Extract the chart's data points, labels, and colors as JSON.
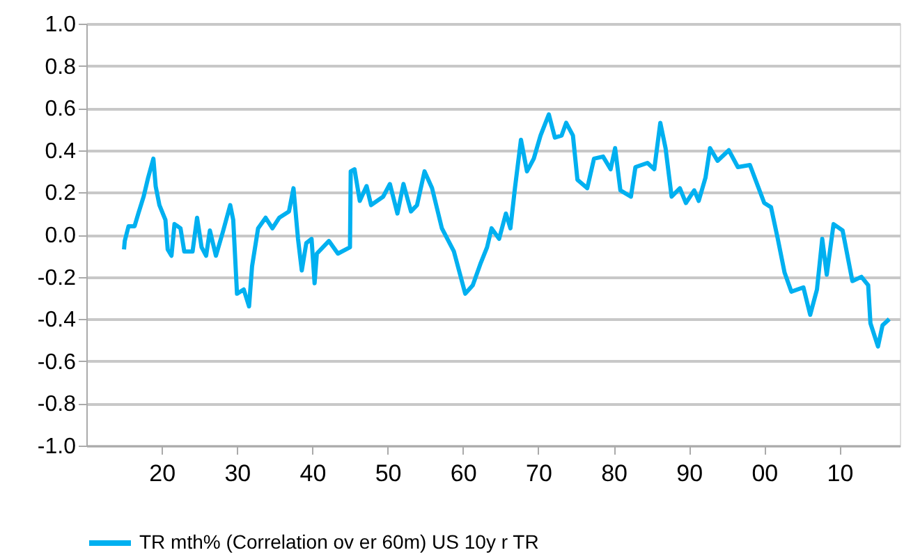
{
  "chart_data": {
    "type": "line",
    "x": [
      1915.0,
      1915.1,
      1915.6,
      1916.4,
      1916.9,
      1917.6,
      1918.2,
      1918.9,
      1919.2,
      1919.7,
      1920.5,
      1920.8,
      1921.3,
      1921.7,
      1922.5,
      1923.0,
      1924.1,
      1924.7,
      1925.3,
      1925.9,
      1926.4,
      1927.2,
      1928.1,
      1929.1,
      1929.5,
      1930.0,
      1930.9,
      1931.6,
      1932.0,
      1932.8,
      1933.8,
      1934.7,
      1935.6,
      1936.9,
      1937.5,
      1938.1,
      1938.6,
      1939.2,
      1939.9,
      1940.3,
      1940.6,
      1942.2,
      1943.4,
      1945.0,
      1945.1,
      1945.6,
      1946.3,
      1947.2,
      1947.8,
      1949.4,
      1950.3,
      1951.3,
      1952.1,
      1953.1,
      1953.9,
      1954.9,
      1955.9,
      1957.2,
      1958.8,
      1960.3,
      1961.3,
      1962.3,
      1963.2,
      1963.8,
      1964.8,
      1965.7,
      1966.3,
      1966.9,
      1967.7,
      1968.5,
      1969.4,
      1970.3,
      1971.4,
      1972.2,
      1973.1,
      1973.7,
      1974.6,
      1975.2,
      1976.5,
      1977.4,
      1978.6,
      1979.6,
      1980.2,
      1980.9,
      1982.3,
      1982.9,
      1984.5,
      1985.4,
      1986.2,
      1986.9,
      1987.7,
      1988.8,
      1989.6,
      1990.7,
      1991.3,
      1992.2,
      1992.8,
      1993.8,
      1995.3,
      1996.5,
      1998.1,
      2000.0,
      2000.9,
      2001.8,
      2002.7,
      2003.6,
      2005.2,
      2006.1,
      2007.0,
      2007.7,
      2008.3,
      2009.2,
      2010.4,
      2011.7,
      2012.9,
      2013.8,
      2014.1,
      2015.1,
      2015.7,
      2016.6
    ],
    "series": [
      {
        "name": "TR  mth% (Correlation ov er 60m) US 10y r TR",
        "color": "#00b0f0",
        "values": [
          -0.07,
          -0.03,
          0.04,
          0.04,
          0.1,
          0.18,
          0.27,
          0.36,
          0.23,
          0.14,
          0.07,
          -0.07,
          -0.1,
          0.05,
          0.03,
          -0.08,
          -0.08,
          0.08,
          -0.06,
          -0.1,
          0.02,
          -0.1,
          0.01,
          0.14,
          0.07,
          -0.28,
          -0.26,
          -0.34,
          -0.15,
          0.03,
          0.08,
          0.03,
          0.08,
          0.11,
          0.22,
          -0.02,
          -0.17,
          -0.04,
          -0.02,
          -0.23,
          -0.09,
          -0.03,
          -0.09,
          -0.06,
          0.3,
          0.31,
          0.16,
          0.23,
          0.14,
          0.18,
          0.24,
          0.1,
          0.24,
          0.11,
          0.14,
          0.3,
          0.22,
          0.03,
          -0.08,
          -0.28,
          -0.24,
          -0.14,
          -0.06,
          0.03,
          -0.02,
          0.1,
          0.03,
          0.22,
          0.45,
          0.3,
          0.36,
          0.47,
          0.57,
          0.46,
          0.47,
          0.53,
          0.47,
          0.26,
          0.22,
          0.36,
          0.37,
          0.31,
          0.41,
          0.21,
          0.18,
          0.32,
          0.34,
          0.31,
          0.53,
          0.41,
          0.18,
          0.22,
          0.15,
          0.21,
          0.16,
          0.27,
          0.41,
          0.35,
          0.4,
          0.32,
          0.33,
          0.15,
          0.13,
          -0.02,
          -0.18,
          -0.27,
          -0.25,
          -0.38,
          -0.26,
          -0.02,
          -0.19,
          0.05,
          0.02,
          -0.22,
          -0.2,
          -0.24,
          -0.42,
          -0.53,
          -0.43,
          -0.4
        ]
      }
    ],
    "xlim": [
      1910,
      2018
    ],
    "xticks": [
      {
        "value": 1920,
        "label": "20"
      },
      {
        "value": 1930,
        "label": "30"
      },
      {
        "value": 1940,
        "label": "40"
      },
      {
        "value": 1950,
        "label": "50"
      },
      {
        "value": 1960,
        "label": "60"
      },
      {
        "value": 1970,
        "label": "70"
      },
      {
        "value": 1980,
        "label": "80"
      },
      {
        "value": 1990,
        "label": "90"
      },
      {
        "value": 2000,
        "label": "00"
      },
      {
        "value": 2010,
        "label": "10"
      }
    ],
    "ylim": [
      -1.0,
      1.0
    ],
    "yticks": [
      {
        "value": -1.0,
        "label": "-1.0"
      },
      {
        "value": -0.8,
        "label": "-0.8"
      },
      {
        "value": -0.6,
        "label": "-0.6"
      },
      {
        "value": -0.4,
        "label": "-0.4"
      },
      {
        "value": -0.2,
        "label": "-0.2"
      },
      {
        "value": 0.0,
        "label": "0.0"
      },
      {
        "value": 0.2,
        "label": "0.2"
      },
      {
        "value": 0.4,
        "label": "0.4"
      },
      {
        "value": 0.6,
        "label": "0.6"
      },
      {
        "value": 0.8,
        "label": "0.8"
      },
      {
        "value": 1.0,
        "label": "1.0"
      }
    ],
    "grid": "y",
    "legend": "bottom",
    "line_style": "solid",
    "marker": "none"
  }
}
